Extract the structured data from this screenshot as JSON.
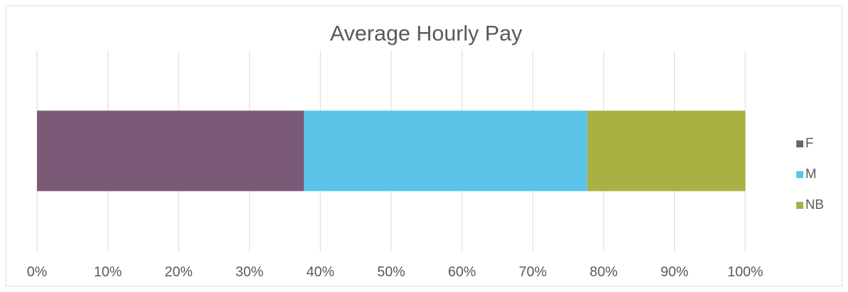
{
  "chart_data": {
    "type": "stacked_barh",
    "title": "Average Hourly Pay",
    "categories": [
      null
    ],
    "series": [
      {
        "name": "F",
        "color": "#7b5a78",
        "values": [
          37.7
        ]
      },
      {
        "name": "M",
        "color": "#5bc4e8",
        "values": [
          40.0
        ]
      },
      {
        "name": "NB",
        "color": "#a9b142",
        "values": [
          22.3
        ]
      }
    ],
    "xlim": [
      0,
      100
    ],
    "xticks": [
      {
        "value": 0,
        "label": "0%"
      },
      {
        "value": 10,
        "label": "10%"
      },
      {
        "value": 20,
        "label": "20%"
      },
      {
        "value": 30,
        "label": "30%"
      },
      {
        "value": 40,
        "label": "40%"
      },
      {
        "value": 50,
        "label": "50%"
      },
      {
        "value": 60,
        "label": "60%"
      },
      {
        "value": 70,
        "label": "70%"
      },
      {
        "value": 80,
        "label": "80%"
      },
      {
        "value": 90,
        "label": "90%"
      },
      {
        "value": 100,
        "label": "100%"
      }
    ],
    "grid": true,
    "legend": "right"
  }
}
